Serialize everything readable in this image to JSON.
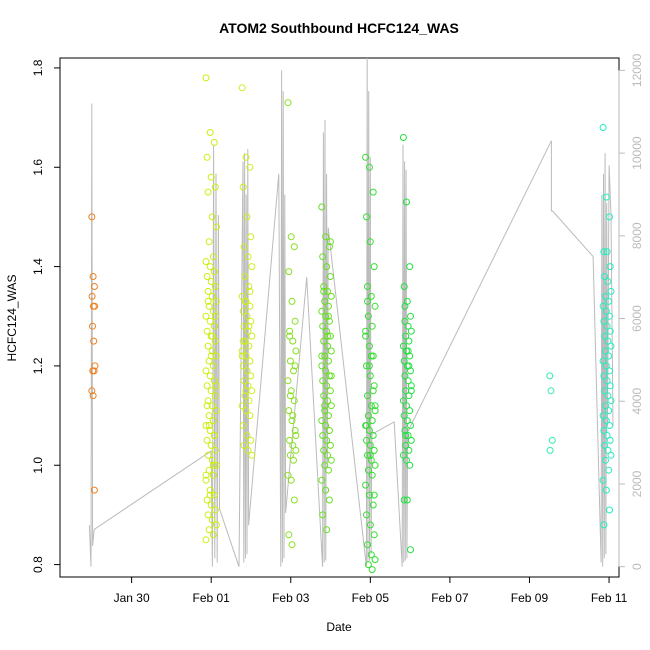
{
  "chart_data": {
    "type": "scatter",
    "title": "ATOM2 Southbound HCFC124_WAS",
    "xlabel": "Date",
    "ylabel": "HCFC124_WAS",
    "x_unit": "days since Jan 29 00:00",
    "xlim": [
      -0.8,
      13.25
    ],
    "ylim": [
      0.775,
      1.82
    ],
    "y2lim": [
      -250,
      12300
    ],
    "x_ticks": [
      {
        "value": 1,
        "label": "Jan 30"
      },
      {
        "value": 3,
        "label": "Feb 01"
      },
      {
        "value": 5,
        "label": "Feb 03"
      },
      {
        "value": 7,
        "label": "Feb 05"
      },
      {
        "value": 9,
        "label": "Feb 07"
      },
      {
        "value": 11,
        "label": "Feb 09"
      },
      {
        "value": 13,
        "label": "Feb 11"
      }
    ],
    "y_ticks": [
      {
        "value": 0.8,
        "label": "0.8"
      },
      {
        "value": 1.0,
        "label": "1.0"
      },
      {
        "value": 1.2,
        "label": "1.2"
      },
      {
        "value": 1.4,
        "label": "1.4"
      },
      {
        "value": 1.6,
        "label": "1.6"
      },
      {
        "value": 1.8,
        "label": "1.8"
      }
    ],
    "y2_ticks": [
      {
        "value": 0,
        "label": "0"
      },
      {
        "value": 2000,
        "label": "2000"
      },
      {
        "value": 4000,
        "label": "4000"
      },
      {
        "value": 6000,
        "label": "6000"
      },
      {
        "value": 8000,
        "label": "8000"
      },
      {
        "value": 10000,
        "label": "10000"
      },
      {
        "value": 12000,
        "label": "12000"
      }
    ],
    "altitude_color": "#bbbbbb",
    "series": [
      {
        "name": "flight-1",
        "color": "#ee8020",
        "x_center": 0.04,
        "x_spread": 0.04,
        "values": [
          1.5,
          1.38,
          1.36,
          1.34,
          1.32,
          1.32,
          1.28,
          1.25,
          1.2,
          1.19,
          1.19,
          1.15,
          1.14,
          0.95
        ]
      },
      {
        "name": "flight-2",
        "color": "#ccee10",
        "x_center": 3.0,
        "x_spread": 0.13,
        "values": [
          1.78,
          1.67,
          1.65,
          1.62,
          1.58,
          1.56,
          1.55,
          1.5,
          1.48,
          1.45,
          1.42,
          1.41,
          1.4,
          1.39,
          1.38,
          1.37,
          1.36,
          1.35,
          1.34,
          1.33,
          1.32,
          1.31,
          1.3,
          1.29,
          1.28,
          1.27,
          1.26,
          1.25,
          1.24,
          1.23,
          1.22,
          1.21,
          1.2,
          1.19,
          1.18,
          1.17,
          1.16,
          1.15,
          1.14,
          1.13,
          1.12,
          1.11,
          1.1,
          1.09,
          1.08,
          1.07,
          1.06,
          1.05,
          1.04,
          1.03,
          1.02,
          1.01,
          1.0,
          0.99,
          0.98,
          0.97,
          0.95,
          0.94,
          0.93,
          0.92,
          0.91,
          0.9,
          0.89,
          0.88,
          0.87,
          0.86,
          0.85,
          0.94,
          1.06,
          1.12,
          1.22,
          1.3,
          1.33,
          1.26,
          1.16,
          1.08,
          1.0,
          0.98
        ]
      },
      {
        "name": "flight-3",
        "color": "#ccee20",
        "x_center": 3.9,
        "x_spread": 0.12,
        "values": [
          1.76,
          1.62,
          1.6,
          1.56,
          1.5,
          1.46,
          1.44,
          1.42,
          1.4,
          1.38,
          1.36,
          1.34,
          1.33,
          1.32,
          1.31,
          1.3,
          1.29,
          1.28,
          1.27,
          1.26,
          1.25,
          1.24,
          1.23,
          1.22,
          1.21,
          1.2,
          1.19,
          1.18,
          1.17,
          1.16,
          1.15,
          1.14,
          1.13,
          1.12,
          1.11,
          1.1,
          1.08,
          1.06,
          1.05,
          1.04,
          1.03,
          1.02,
          1.33,
          1.28,
          1.22,
          1.15,
          1.35,
          1.25
        ]
      },
      {
        "name": "flight-4",
        "color": "#88e020",
        "x_center": 5.03,
        "x_spread": 0.1,
        "values": [
          1.73,
          1.46,
          1.44,
          1.39,
          1.33,
          1.29,
          1.27,
          1.25,
          1.23,
          1.21,
          1.19,
          1.17,
          1.15,
          1.13,
          1.11,
          1.09,
          1.07,
          1.05,
          1.04,
          1.03,
          1.02,
          1.01,
          0.98,
          0.97,
          0.93,
          0.86,
          0.84,
          1.2,
          1.26,
          1.1,
          1.06,
          1.14
        ]
      },
      {
        "name": "flight-5",
        "color": "#66e020",
        "x_center": 5.9,
        "x_spread": 0.12,
        "values": [
          1.52,
          1.46,
          1.44,
          1.42,
          1.4,
          1.38,
          1.36,
          1.35,
          1.34,
          1.33,
          1.32,
          1.31,
          1.3,
          1.29,
          1.28,
          1.27,
          1.26,
          1.25,
          1.24,
          1.23,
          1.22,
          1.21,
          1.2,
          1.19,
          1.18,
          1.17,
          1.16,
          1.15,
          1.14,
          1.13,
          1.12,
          1.11,
          1.1,
          1.09,
          1.08,
          1.07,
          1.06,
          1.05,
          1.04,
          1.03,
          1.02,
          1.01,
          1.0,
          0.99,
          0.97,
          0.95,
          0.93,
          0.9,
          0.87,
          1.45,
          1.35,
          1.26,
          1.18,
          1.12,
          1.3,
          1.22
        ]
      },
      {
        "name": "flight-6",
        "color": "#33e030",
        "x_center": 7.0,
        "x_spread": 0.12,
        "values": [
          1.62,
          1.6,
          1.55,
          1.5,
          1.45,
          1.4,
          1.36,
          1.34,
          1.32,
          1.3,
          1.28,
          1.26,
          1.24,
          1.22,
          1.2,
          1.18,
          1.16,
          1.14,
          1.12,
          1.11,
          1.1,
          1.09,
          1.08,
          1.07,
          1.06,
          1.05,
          1.04,
          1.03,
          1.02,
          1.01,
          1.0,
          0.99,
          0.98,
          0.96,
          0.94,
          0.92,
          0.9,
          0.88,
          0.86,
          0.84,
          0.82,
          0.81,
          0.8,
          0.79,
          1.27,
          1.2,
          1.15,
          1.08,
          1.02,
          0.94,
          1.33,
          1.22,
          1.12
        ]
      },
      {
        "name": "flight-7",
        "color": "#22e040",
        "x_center": 7.93,
        "x_spread": 0.1,
        "values": [
          1.66,
          1.53,
          1.4,
          1.36,
          1.33,
          1.3,
          1.29,
          1.28,
          1.27,
          1.26,
          1.25,
          1.24,
          1.23,
          1.22,
          1.21,
          1.2,
          1.19,
          1.18,
          1.17,
          1.16,
          1.15,
          1.14,
          1.13,
          1.12,
          1.11,
          1.1,
          1.09,
          1.08,
          1.07,
          1.06,
          1.05,
          1.04,
          1.03,
          1.02,
          1.01,
          1.0,
          0.93,
          0.93,
          0.83,
          1.32,
          1.23,
          1.15,
          1.06,
          1.2
        ]
      },
      {
        "name": "flight-8",
        "color": "#33eeaa",
        "x_center": 11.55,
        "x_spread": 0.04,
        "values": [
          1.18,
          1.15,
          1.05,
          1.03
        ]
      },
      {
        "name": "flight-9",
        "color": "#22eec0",
        "x_center": 12.95,
        "x_spread": 0.1,
        "values": [
          1.68,
          1.54,
          1.5,
          1.43,
          1.43,
          1.4,
          1.38,
          1.37,
          1.35,
          1.34,
          1.33,
          1.32,
          1.31,
          1.3,
          1.29,
          1.28,
          1.27,
          1.26,
          1.25,
          1.24,
          1.23,
          1.22,
          1.21,
          1.2,
          1.19,
          1.18,
          1.17,
          1.16,
          1.15,
          1.14,
          1.13,
          1.12,
          1.11,
          1.1,
          1.09,
          1.08,
          1.07,
          1.06,
          1.05,
          1.04,
          1.03,
          1.02,
          1.01,
          0.99,
          0.97,
          0.95,
          0.91,
          0.88
        ]
      }
    ],
    "altitude_line": {
      "x": [
        -0.06,
        -0.02,
        0.0,
        0.02,
        0.06,
        3.0,
        3.03,
        3.06,
        3.09,
        3.12,
        3.15,
        3.18,
        3.21,
        3.7,
        3.8,
        3.82,
        3.84,
        3.86,
        3.88,
        3.9,
        3.92,
        3.94,
        4.7,
        4.75,
        4.77,
        4.79,
        4.81,
        4.83,
        4.85,
        4.87,
        5.4,
        5.8,
        5.82,
        5.84,
        5.86,
        5.88,
        5.9,
        5.92,
        5.94,
        6.9,
        6.92,
        6.94,
        6.96,
        6.98,
        7.0,
        7.02,
        7.04,
        7.6,
        7.8,
        7.82,
        7.84,
        7.86,
        7.88,
        7.9,
        7.92,
        7.94,
        7.96,
        11.55,
        11.55,
        11.58,
        12.6,
        12.8,
        12.82,
        12.84,
        12.86,
        12.88,
        12.9,
        12.92,
        12.94,
        12.96,
        13.0,
        13.05,
        13.1
      ],
      "y": [
        1000,
        0,
        11200,
        500,
        900,
        2800,
        0,
        10200,
        200,
        9500,
        100,
        8500,
        1400,
        0,
        9800,
        100,
        10000,
        200,
        9000,
        300,
        10100,
        1000,
        9500,
        0,
        12000,
        100,
        11500,
        200,
        9000,
        1300,
        7000,
        0,
        10500,
        100,
        10800,
        150,
        9500,
        2500,
        8200,
        0,
        12300,
        100,
        11500,
        150,
        9900,
        300,
        3200,
        3500,
        0,
        10200,
        100,
        9800,
        150,
        9600,
        200,
        3300,
        3300,
        10300,
        8600,
        8600,
        7500,
        100,
        9000,
        0,
        9500,
        200,
        10000,
        300,
        8800,
        3400,
        9700,
        8500,
        3400
      ]
    }
  }
}
